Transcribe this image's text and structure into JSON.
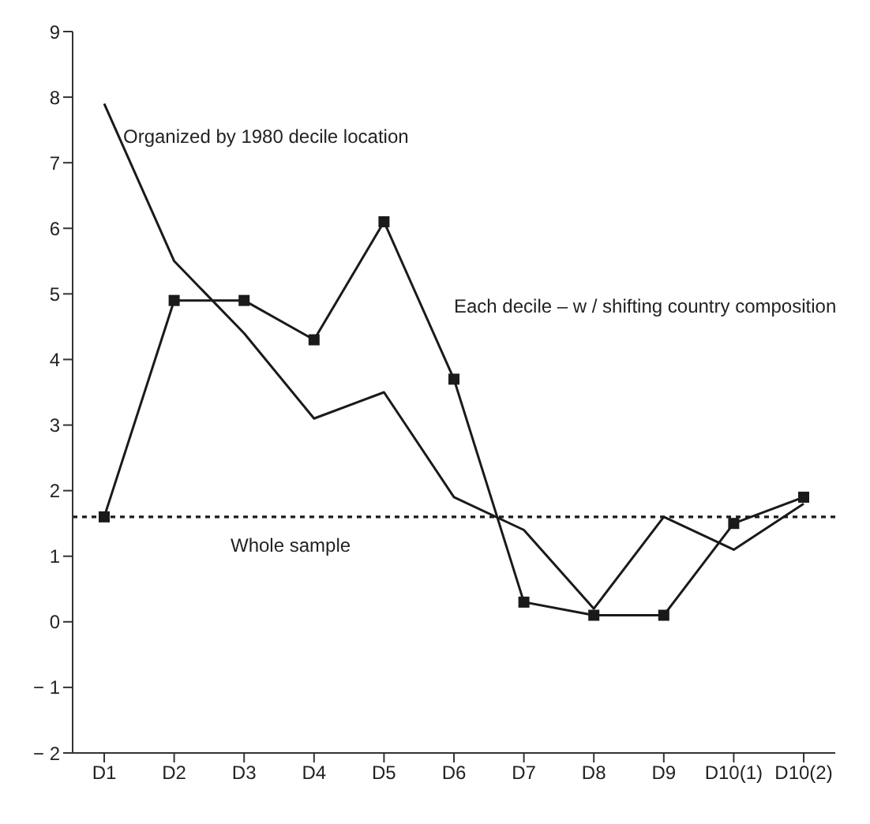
{
  "chart_data": {
    "type": "line",
    "categories": [
      "D1",
      "D2",
      "D3",
      "D4",
      "D5",
      "D6",
      "D7",
      "D8",
      "D9",
      "D10(1)",
      "D10(2)"
    ],
    "series": [
      {
        "name": "Organized by 1980 decile location",
        "color": "#1a1a1a",
        "marker": "none",
        "values": [
          7.9,
          5.5,
          4.4,
          3.1,
          3.5,
          1.9,
          1.4,
          0.2,
          1.6,
          1.1,
          1.8
        ]
      },
      {
        "name": "Each decile – w / shifting country composition",
        "color": "#1a1a1a",
        "marker": "square",
        "values": [
          1.6,
          4.9,
          4.9,
          4.3,
          6.1,
          3.7,
          0.3,
          0.1,
          0.1,
          1.5,
          1.9
        ]
      }
    ],
    "ylim": [
      -2,
      9
    ],
    "yticks": [
      {
        "value": -2,
        "label": "− 2"
      },
      {
        "value": -1,
        "label": "− 1"
      },
      0,
      1,
      2,
      3,
      4,
      5,
      6,
      7,
      8,
      9
    ],
    "ref_lines": [
      {
        "axis": "y",
        "value": 1.6,
        "label": "Whole sample",
        "color": "#1a1a1a",
        "line_style": "dotted"
      }
    ],
    "grid": false,
    "legend": false,
    "line_style": "solid"
  }
}
